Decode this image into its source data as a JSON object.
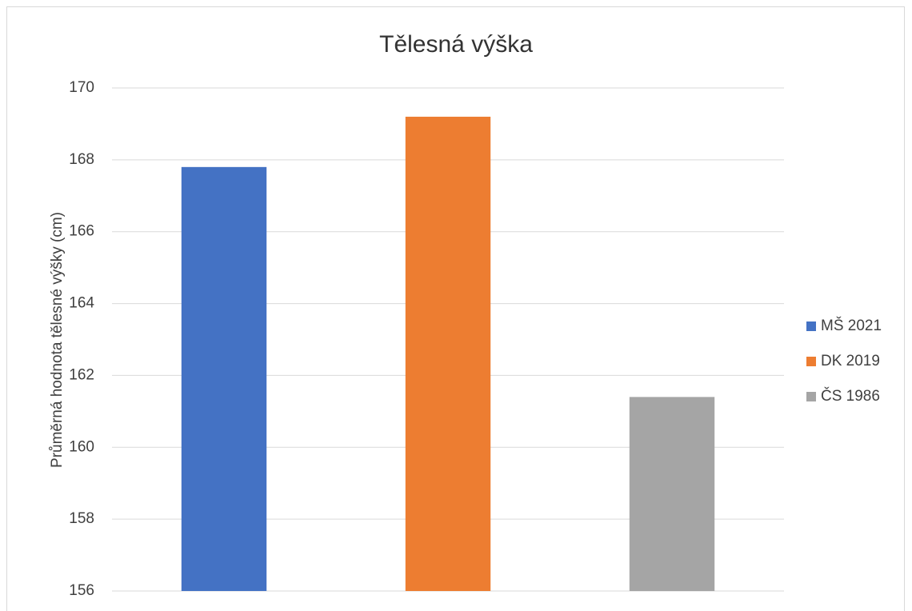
{
  "chart_data": {
    "type": "bar",
    "title": "Tělesná výška",
    "y_label": "Průměrná hodnota tělesné výšky (cm)",
    "categories": [
      null
    ],
    "series": [
      {
        "name": "MŠ 2021",
        "color": "#4472c4",
        "values": [
          167.8
        ]
      },
      {
        "name": "DK 2019",
        "color": "#ed7d31",
        "values": [
          169.2
        ]
      },
      {
        "name": "ČS 1986",
        "color": "#a5a5a5",
        "values": [
          161.4
        ]
      }
    ],
    "ylim": [
      156,
      170
    ],
    "yticks": [
      156,
      158,
      160,
      162,
      164,
      166,
      168,
      170
    ],
    "grid": true,
    "legend": "right"
  }
}
